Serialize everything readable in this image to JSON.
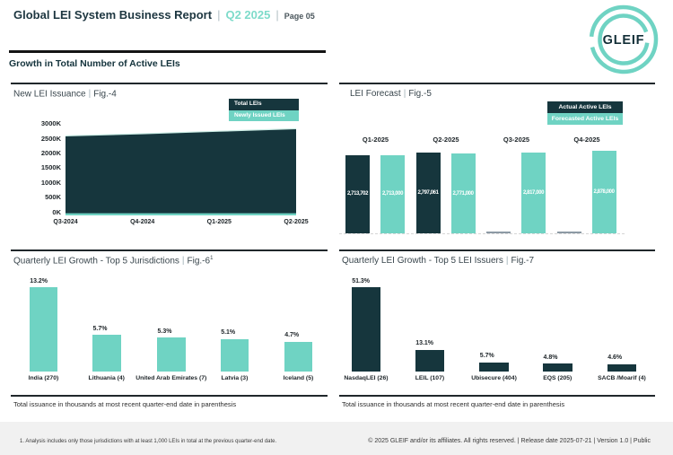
{
  "header": {
    "title": "Global LEI System Business Report",
    "divider": "|",
    "period": "Q2 2025",
    "page_label": "Page 05",
    "logo_text": "GLEIF"
  },
  "section_title": "Growth in Total Number of Active LEIs",
  "panels": {
    "issuance": {
      "title": "New LEI Issuance",
      "divider": "|",
      "fig": "Fig.-4",
      "fig_sup": ""
    },
    "forecast": {
      "title": "LEI Forecast",
      "divider": "|",
      "fig": "Fig.-5",
      "fig_sup": ""
    },
    "jurisdictions": {
      "title": "Quarterly LEI Growth - Top 5 Jurisdictions",
      "divider": "|",
      "fig": "Fig.-6",
      "fig_sup": "1",
      "footnote": "Total issuance in thousands at most recent quarter-end date in parenthesis"
    },
    "issuers": {
      "title": "Quarterly LEI Growth - Top 5 LEI Issuers",
      "divider": "|",
      "fig": "Fig.-7",
      "fig_sup": "",
      "footnote": "Total issuance in thousands at most recent quarter-end date in parenthesis"
    }
  },
  "chart_data": [
    {
      "id": "issuance",
      "type": "area",
      "title": "New LEI Issuance | Fig.-4",
      "categories": [
        "Q3-2024",
        "Q4-2024",
        "Q1-2025",
        "Q2-2025"
      ],
      "series": [
        {
          "name": "Total LEIs",
          "color": "#16363d",
          "values_K": [
            2700,
            2775,
            2860,
            2945
          ],
          "values_estimated": true
        },
        {
          "name": "Newly Issued LEIs",
          "color": "#6fd3c3",
          "values_K": [
            70,
            72,
            75,
            78
          ],
          "values_estimated": true
        }
      ],
      "ylim_K": [
        0,
        3000
      ],
      "y_ticks": [
        "3000K",
        "2500K",
        "2000K",
        "1500K",
        "1000K",
        "500K",
        "0K"
      ],
      "legend_position": "top-right",
      "grid": false
    },
    {
      "id": "forecast",
      "type": "bar",
      "title": "LEI Forecast | Fig.-5",
      "categories": [
        "Q1-2025",
        "Q2-2025",
        "Q3-2025",
        "Q4-2025"
      ],
      "series": [
        {
          "name": "Actual Active LEIs",
          "color": "#16363d",
          "values": [
            2713702,
            2797061,
            null,
            null
          ],
          "labels": [
            "2,713,702",
            "2,797,061",
            "",
            ""
          ]
        },
        {
          "name": "Forecasted Active LEIs",
          "color": "#6fd3c3",
          "values": [
            2713000,
            2771000,
            2817000,
            2878000
          ],
          "labels": [
            "2,713,000",
            "2,771,000",
            "2,817,000",
            "2,878,000"
          ]
        }
      ],
      "ylim": [
        0,
        2878000
      ],
      "legend_position": "top-right",
      "grid": false
    },
    {
      "id": "jurisdictions",
      "type": "bar",
      "title": "Quarterly LEI Growth - Top 5 Jurisdictions | Fig.-6¹",
      "categories": [
        "India (270)",
        "Lithuania (4)",
        "United Arab Emirates (7)",
        "Latvia (3)",
        "Iceland (5)"
      ],
      "values_pct": [
        13.2,
        5.7,
        5.3,
        5.1,
        4.7
      ],
      "labels": [
        "13.2%",
        "5.7%",
        "5.3%",
        "5.1%",
        "4.7%"
      ],
      "bar_color": "#6fd3c3",
      "footnote": "Total issuance in thousands at most recent quarter-end date in parenthesis"
    },
    {
      "id": "issuers",
      "type": "bar",
      "title": "Quarterly LEI Growth - Top 5 LEI Issuers | Fig.-7",
      "categories": [
        "NasdaqLEI (26)",
        "LEIL (107)",
        "Ubisecure (404)",
        "EQS (205)",
        "SACB /Moarif (4)"
      ],
      "values_pct": [
        51.3,
        13.1,
        5.7,
        4.8,
        4.6
      ],
      "labels": [
        "51.3%",
        "13.1%",
        "5.7%",
        "4.8%",
        "4.6%"
      ],
      "bar_color": "#16363d",
      "footnote": "Total issuance in thousands at most recent quarter-end date in parenthesis"
    }
  ],
  "footer": {
    "note": "1. Analysis includes only those jurisdictions with at least 1,000 LEIs in total at the previous quarter-end date.",
    "copyright": "© 2025 GLEIF and/or its affiliates. All rights reserved. | Release date 2025-07-21 | Version 1.0 | Public"
  },
  "colors": {
    "dark": "#16363d",
    "teal": "#6fd3c3",
    "teal_accent": "#7edbca",
    "placeholder_gray": "#8d9aa5"
  }
}
